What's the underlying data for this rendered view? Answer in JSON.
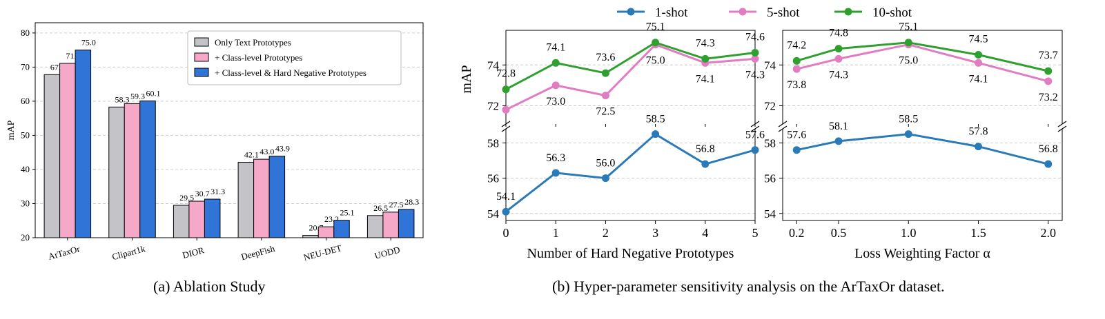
{
  "captions": {
    "a": "(a) Ablation Study",
    "b": "(b) Hyper-parameter sensitivity analysis on the ArTaxOr dataset."
  },
  "colors": {
    "text_only": "#c4c4c8",
    "class_level": "#f5a8c8",
    "hard_negative": "#2f74d6",
    "one_shot": "#2a7ab8",
    "five_shot": "#e07dc2",
    "ten_shot": "#2fa02f"
  },
  "chart_data": [
    {
      "type": "bar",
      "ylabel": "mAP",
      "ylim": [
        20,
        83
      ],
      "yticks": [
        20,
        30,
        40,
        50,
        60,
        70,
        80
      ],
      "grid": true,
      "legend_position": "top-right",
      "categories": [
        "ArTaxOr",
        "Clipart1k",
        "DIOR",
        "DeepFish",
        "NEU-DET",
        "UODD"
      ],
      "series": [
        {
          "name": "Only Text Prototypes",
          "values": [
            67.8,
            58.3,
            29.5,
            42.1,
            20.7,
            26.5
          ]
        },
        {
          "name": "+ Class-level Prototypes",
          "values": [
            71.1,
            59.3,
            30.7,
            43.0,
            23.2,
            27.5
          ]
        },
        {
          "name": "+ Class-level & Hard Negative Prototypes",
          "values": [
            75.0,
            60.1,
            31.3,
            43.9,
            25.1,
            28.3
          ]
        }
      ],
      "labels": [
        [
          "67.8",
          "58.3",
          "29.5",
          "42.1",
          "20.7",
          "26.5"
        ],
        [
          "71.1",
          "59.3",
          "30.7",
          "43.0",
          "23.2",
          "27.5"
        ],
        [
          "75.0",
          "60.1",
          "31.3",
          "43.9",
          "25.1",
          "28.3"
        ]
      ]
    },
    {
      "type": "line",
      "xlabel": "Number of Hard Negative Prototypes",
      "ylabel": "mAP",
      "x": [
        0,
        1,
        2,
        3,
        4,
        5
      ],
      "x_ticks": [
        "0",
        "1",
        "2",
        "3",
        "4",
        "5"
      ],
      "broken_axis": true,
      "upper_ylim": [
        71.1,
        75.7
      ],
      "upper_yticks": [
        72,
        74
      ],
      "lower_ylim": [
        53.6,
        58.8
      ],
      "lower_yticks": [
        54,
        56,
        58
      ],
      "grid": true,
      "series": [
        {
          "name": "1-shot",
          "values": [
            54.1,
            56.3,
            56.0,
            58.5,
            56.8,
            57.6
          ],
          "labels": [
            "54.1",
            "56.3",
            "56.0",
            "58.5",
            "56.8",
            "57.6"
          ]
        },
        {
          "name": "5-shot",
          "values": [
            71.8,
            73.0,
            72.5,
            75.0,
            74.1,
            74.3
          ],
          "labels": [
            "",
            "73.0",
            "72.5",
            "75.0",
            "74.1",
            "74.3"
          ]
        },
        {
          "name": "10-shot",
          "values": [
            72.8,
            74.1,
            73.6,
            75.1,
            74.3,
            74.6
          ],
          "labels": [
            "72.8",
            "74.1",
            "73.6",
            "75.1",
            "74.3",
            "74.6"
          ]
        }
      ]
    },
    {
      "type": "line",
      "xlabel": "Loss Weighting Factor α",
      "x": [
        0.2,
        0.5,
        1.0,
        1.5,
        2.0
      ],
      "x_ticks": [
        "0.2",
        "0.5",
        "1.0",
        "1.5",
        "2.0"
      ],
      "broken_axis": true,
      "upper_ylim": [
        71.1,
        75.7
      ],
      "upper_yticks": [
        72,
        74
      ],
      "lower_ylim": [
        53.6,
        58.8
      ],
      "lower_yticks": [
        54,
        56,
        58
      ],
      "grid": true,
      "series": [
        {
          "name": "1-shot",
          "values": [
            57.6,
            58.1,
            58.5,
            57.8,
            56.8
          ],
          "labels": [
            "57.6",
            "58.1",
            "58.5",
            "57.8",
            "56.8"
          ]
        },
        {
          "name": "5-shot",
          "values": [
            73.8,
            74.3,
            75.0,
            74.1,
            73.2
          ],
          "labels": [
            "73.8",
            "74.3",
            "75.0",
            "74.1",
            "73.2"
          ]
        },
        {
          "name": "10-shot",
          "values": [
            74.2,
            74.8,
            75.1,
            74.5,
            73.7
          ],
          "labels": [
            "74.2",
            "74.8",
            "75.1",
            "74.5",
            "73.7"
          ]
        }
      ]
    }
  ]
}
